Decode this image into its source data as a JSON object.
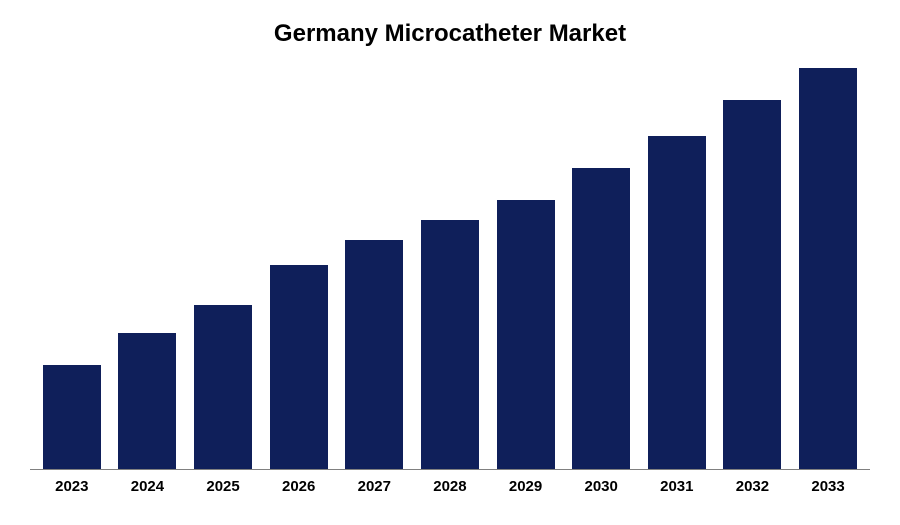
{
  "chart": {
    "type": "bar",
    "title": "Germany Microcatheter Market",
    "title_fontsize": 24,
    "title_fontweight": "bold",
    "title_color": "#000000",
    "categories": [
      "2023",
      "2024",
      "2025",
      "2026",
      "2027",
      "2028",
      "2029",
      "2030",
      "2031",
      "2032",
      "2033"
    ],
    "values": [
      26,
      34,
      41,
      51,
      57,
      62,
      67,
      75,
      83,
      92,
      100
    ],
    "bar_color": "#0f1f5a",
    "background_color": "#ffffff",
    "axis_line_color": "#808080",
    "x_label_fontsize": 15,
    "x_label_fontweight": "bold",
    "x_label_color": "#000000",
    "bar_max_width": 58,
    "bar_gap": 12,
    "ylim": [
      0,
      100
    ]
  }
}
